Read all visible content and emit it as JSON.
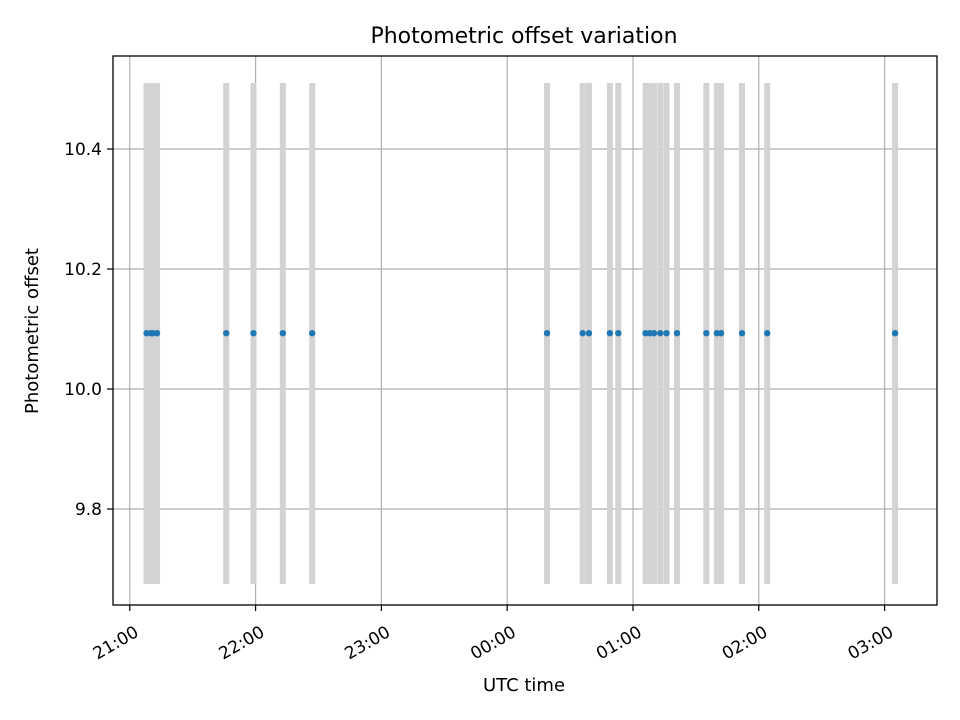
{
  "chart_data": {
    "type": "scatter",
    "title": "Photometric offset variation",
    "xlabel": "UTC time",
    "ylabel": "Photometric offset",
    "xlim": [
      "20:52",
      "27:25"
    ],
    "ylim": [
      9.64,
      10.555
    ],
    "xticks": [
      {
        "time": "21:00",
        "label": "21:00"
      },
      {
        "time": "22:00",
        "label": "22:00"
      },
      {
        "time": "23:00",
        "label": "23:00"
      },
      {
        "time": "24:00",
        "label": "00:00"
      },
      {
        "time": "25:00",
        "label": "01:00"
      },
      {
        "time": "26:00",
        "label": "02:00"
      },
      {
        "time": "27:00",
        "label": "03:00"
      }
    ],
    "yticks": [
      {
        "value": 9.8,
        "label": "9.8"
      },
      {
        "value": 10.0,
        "label": "10.0"
      },
      {
        "value": 10.2,
        "label": "10.2"
      },
      {
        "value": 10.4,
        "label": "10.4"
      }
    ],
    "grid": true,
    "band_range": [
      9.675,
      10.51
    ],
    "series": [
      {
        "color": "#1f77b4",
        "x": [
          "21:08",
          "21:10",
          "21:11",
          "21:13",
          "21:46",
          "21:59",
          "22:13",
          "22:27",
          "24:19",
          "24:36",
          "24:39",
          "24:49",
          "24:53",
          "25:06",
          "25:08",
          "25:10",
          "25:13",
          "25:16",
          "25:21",
          "25:35",
          "25:40",
          "25:42",
          "25:52",
          "26:04",
          "27:05"
        ],
        "y": [
          10.093,
          10.093,
          10.093,
          10.093,
          10.093,
          10.093,
          10.093,
          10.093,
          10.093,
          10.093,
          10.093,
          10.093,
          10.093,
          10.093,
          10.093,
          10.093,
          10.093,
          10.093,
          10.093,
          10.093,
          10.093,
          10.093,
          10.093,
          10.093,
          10.093
        ]
      }
    ]
  }
}
